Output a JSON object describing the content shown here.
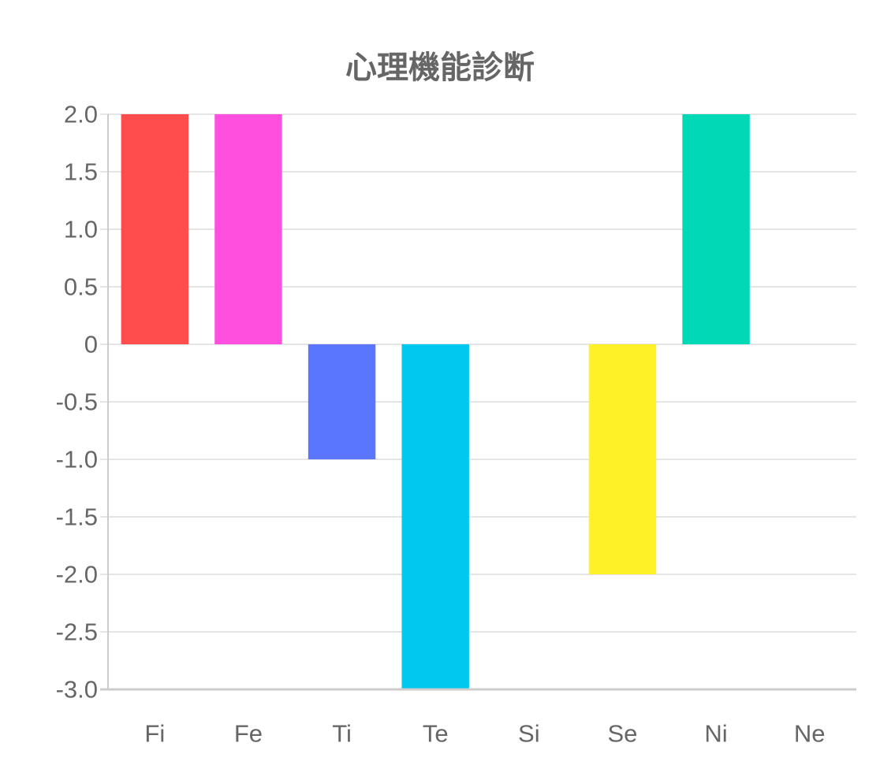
{
  "chart_data": {
    "type": "bar",
    "title": "心理機能診断",
    "xlabel": "",
    "ylabel": "",
    "categories": [
      "Fi",
      "Fe",
      "Ti",
      "Te",
      "Si",
      "Se",
      "Ni",
      "Ne"
    ],
    "values": [
      2,
      2,
      -1,
      -3,
      0,
      -2,
      2,
      0
    ],
    "colors": [
      "#ff4d4d",
      "#ff4fdf",
      "#5a76ff",
      "#00c9f0",
      "#cccccc",
      "#fff027",
      "#00d8b6",
      "#cccccc"
    ],
    "ylim": [
      -3,
      2
    ],
    "yticks": [
      "2.0",
      "1.5",
      "1.0",
      "0.5",
      "0",
      "-0.5",
      "-1.0",
      "-1.5",
      "-2.0",
      "-2.5",
      "-3.0"
    ],
    "ytick_values": [
      2,
      1.5,
      1,
      0.5,
      0,
      -0.5,
      -1,
      -1.5,
      -2,
      -2.5,
      -3
    ],
    "grid": true,
    "legend": "none",
    "gridline_color": "#e5e5e5",
    "axis_color": "#cccccc",
    "text_color": "#666666"
  }
}
